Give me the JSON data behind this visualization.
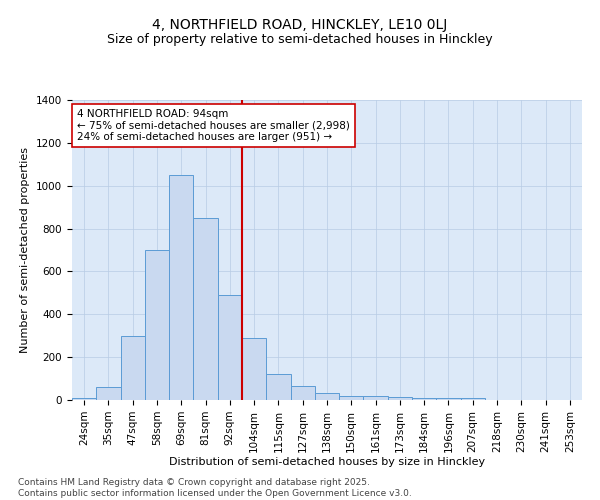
{
  "title": "4, NORTHFIELD ROAD, HINCKLEY, LE10 0LJ",
  "subtitle": "Size of property relative to semi-detached houses in Hinckley",
  "xlabel": "Distribution of semi-detached houses by size in Hinckley",
  "ylabel": "Number of semi-detached properties",
  "bin_labels": [
    "24sqm",
    "35sqm",
    "47sqm",
    "58sqm",
    "69sqm",
    "81sqm",
    "92sqm",
    "104sqm",
    "115sqm",
    "127sqm",
    "138sqm",
    "150sqm",
    "161sqm",
    "173sqm",
    "184sqm",
    "196sqm",
    "207sqm",
    "218sqm",
    "230sqm",
    "241sqm",
    "253sqm"
  ],
  "bar_heights": [
    10,
    60,
    300,
    700,
    1050,
    850,
    490,
    290,
    120,
    65,
    35,
    20,
    20,
    15,
    10,
    10,
    10,
    0,
    0,
    0,
    0
  ],
  "bar_color": "#c9d9f0",
  "bar_edge_color": "#5b9bd5",
  "vline_x_index": 6,
  "vline_color": "#cc0000",
  "annotation_text": "4 NORTHFIELD ROAD: 94sqm\n← 75% of semi-detached houses are smaller (2,998)\n24% of semi-detached houses are larger (951) →",
  "annotation_box_color": "#ffffff",
  "annotation_box_edge": "#cc0000",
  "ylim": [
    0,
    1400
  ],
  "yticks": [
    0,
    200,
    400,
    600,
    800,
    1000,
    1200,
    1400
  ],
  "bg_color": "#dce9f8",
  "footer_text": "Contains HM Land Registry data © Crown copyright and database right 2025.\nContains public sector information licensed under the Open Government Licence v3.0.",
  "title_fontsize": 10,
  "subtitle_fontsize": 9,
  "axis_label_fontsize": 8,
  "tick_fontsize": 7.5,
  "annot_fontsize": 7.5,
  "footer_fontsize": 6.5
}
